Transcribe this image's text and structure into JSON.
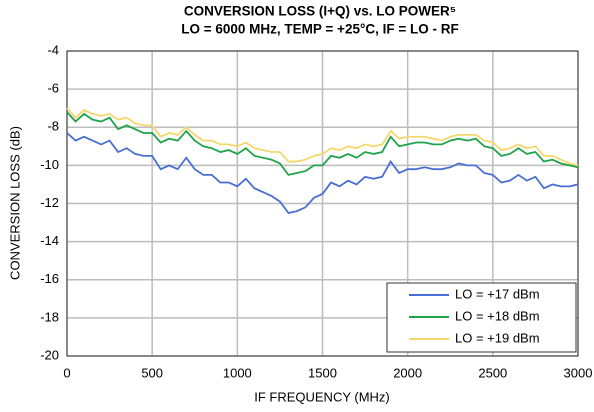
{
  "chart_data": {
    "type": "line",
    "title": "CONVERSION LOSS (I+Q) vs. LO POWER⁵",
    "subtitle": "LO = 6000 MHz, TEMP = +25°C, IF = LO - RF",
    "x_label": "IF FREQUENCY (MHz)",
    "y_label": "CONVERSION LOSS (dB)",
    "x": [
      0,
      50,
      100,
      150,
      200,
      250,
      300,
      350,
      400,
      450,
      500,
      550,
      600,
      650,
      700,
      750,
      800,
      850,
      900,
      950,
      1000,
      1050,
      1100,
      1150,
      1200,
      1250,
      1300,
      1350,
      1400,
      1450,
      1500,
      1550,
      1600,
      1650,
      1700,
      1750,
      1800,
      1850,
      1900,
      1950,
      2000,
      2050,
      2100,
      2150,
      2200,
      2250,
      2300,
      2350,
      2400,
      2450,
      2500,
      2550,
      2600,
      2650,
      2700,
      2750,
      2800,
      2850,
      2900,
      2950,
      3000
    ],
    "series": [
      {
        "name": "LO = +17 dBm",
        "color": "#4a6fd4",
        "values": [
          -8.3,
          -8.7,
          -8.5,
          -8.7,
          -8.9,
          -8.7,
          -9.3,
          -9.1,
          -9.4,
          -9.5,
          -9.5,
          -10.2,
          -10.0,
          -10.2,
          -9.6,
          -10.2,
          -10.5,
          -10.5,
          -10.9,
          -10.9,
          -11.1,
          -10.7,
          -11.2,
          -11.4,
          -11.6,
          -11.9,
          -12.5,
          -12.4,
          -12.2,
          -11.7,
          -11.5,
          -10.9,
          -11.1,
          -10.8,
          -11.0,
          -10.6,
          -10.7,
          -10.6,
          -9.8,
          -10.4,
          -10.2,
          -10.2,
          -10.1,
          -10.2,
          -10.2,
          -10.1,
          -9.9,
          -10.0,
          -10.0,
          -10.4,
          -10.5,
          -10.9,
          -10.8,
          -10.5,
          -10.8,
          -10.6,
          -11.2,
          -11.0,
          -11.1,
          -11.1,
          -11.0
        ]
      },
      {
        "name": "LO = +18 dBm",
        "color": "#1fa34a",
        "values": [
          -7.2,
          -7.7,
          -7.3,
          -7.6,
          -7.7,
          -7.5,
          -8.1,
          -7.9,
          -8.1,
          -8.3,
          -8.3,
          -8.8,
          -8.6,
          -8.7,
          -8.2,
          -8.7,
          -9.0,
          -9.1,
          -9.3,
          -9.2,
          -9.4,
          -9.1,
          -9.5,
          -9.6,
          -9.7,
          -9.9,
          -10.5,
          -10.4,
          -10.3,
          -10.0,
          -10.0,
          -9.5,
          -9.6,
          -9.4,
          -9.6,
          -9.3,
          -9.4,
          -9.3,
          -8.5,
          -9.0,
          -8.9,
          -8.8,
          -8.8,
          -8.9,
          -8.9,
          -8.7,
          -8.6,
          -8.7,
          -8.6,
          -9.0,
          -9.1,
          -9.5,
          -9.4,
          -9.1,
          -9.4,
          -9.3,
          -9.8,
          -9.7,
          -9.9,
          -10.0,
          -10.1
        ]
      },
      {
        "name": "LO = +19 dBm",
        "color": "#f5d76e",
        "values": [
          -7.0,
          -7.5,
          -7.1,
          -7.3,
          -7.4,
          -7.3,
          -7.6,
          -7.5,
          -7.8,
          -7.9,
          -7.9,
          -8.5,
          -8.3,
          -8.4,
          -8.0,
          -8.4,
          -8.7,
          -8.7,
          -8.9,
          -8.9,
          -9.0,
          -8.8,
          -9.1,
          -9.2,
          -9.3,
          -9.3,
          -9.8,
          -9.8,
          -9.7,
          -9.5,
          -9.4,
          -9.1,
          -9.2,
          -9.0,
          -9.1,
          -8.9,
          -9.0,
          -8.9,
          -8.2,
          -8.6,
          -8.5,
          -8.5,
          -8.5,
          -8.6,
          -8.7,
          -8.5,
          -8.4,
          -8.4,
          -8.4,
          -8.7,
          -8.8,
          -9.2,
          -9.1,
          -8.9,
          -9.1,
          -9.0,
          -9.5,
          -9.5,
          -9.7,
          -9.9,
          -10.0
        ]
      }
    ],
    "xlim": [
      0,
      3000
    ],
    "xticks": [
      0,
      500,
      1000,
      1500,
      2000,
      2500,
      3000
    ],
    "ylim": [
      -20,
      -4
    ],
    "yticks": [
      -4,
      -6,
      -8,
      -10,
      -12,
      -14,
      -16,
      -18,
      -20
    ],
    "grid": true,
    "legend": "lower right"
  }
}
